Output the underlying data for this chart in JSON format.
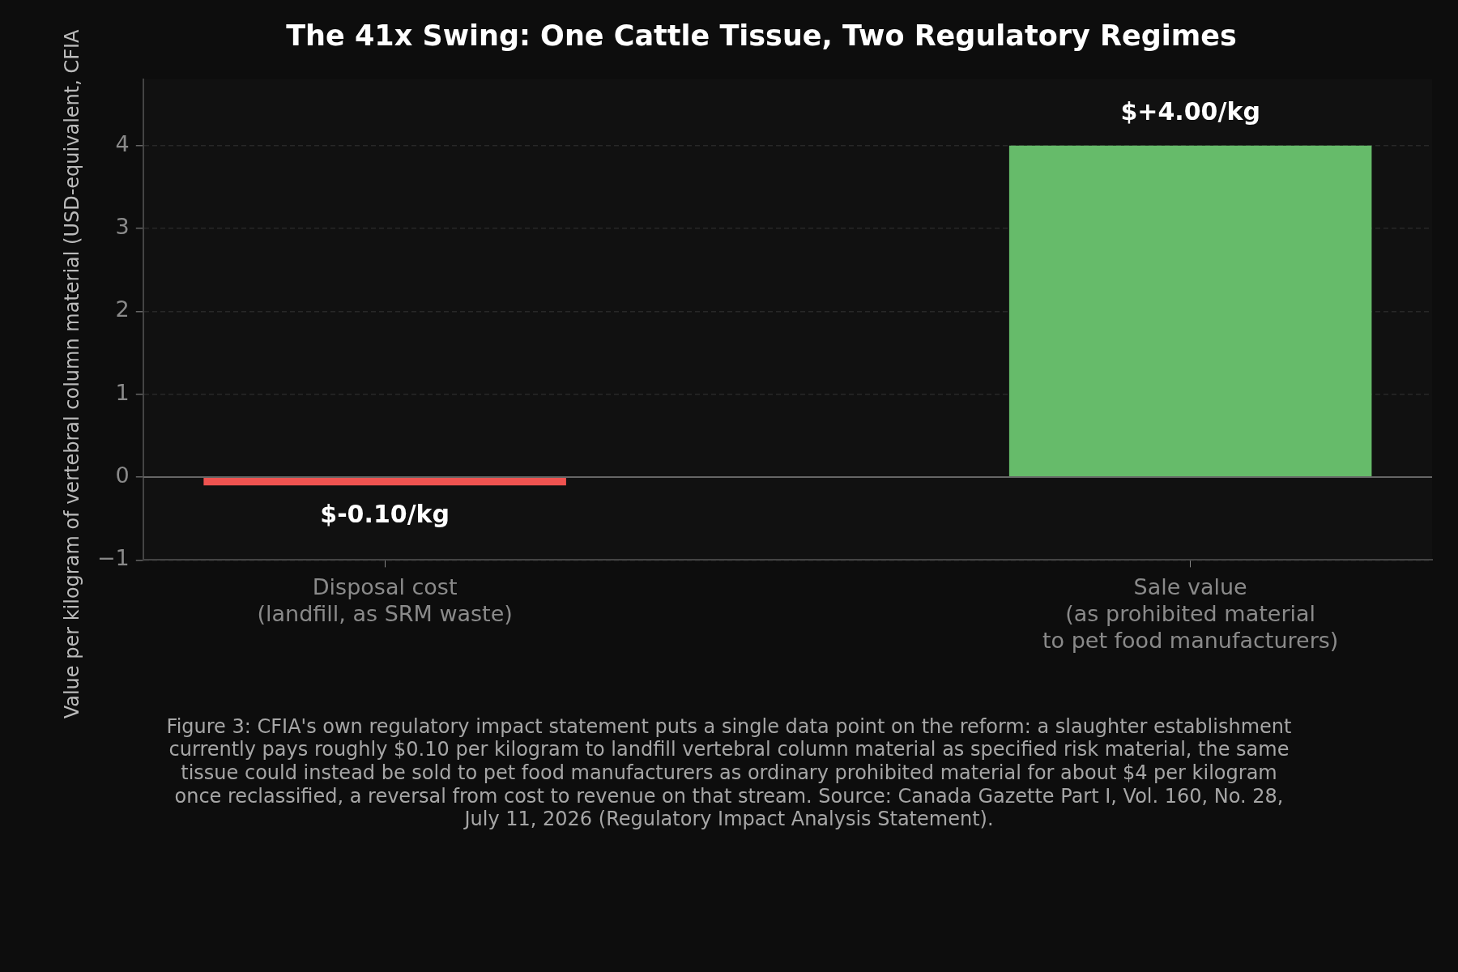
{
  "chart_data": {
    "type": "bar",
    "title": "The 41x Swing: One Cattle Tissue, Two Regulatory Regimes",
    "ylabel": "Value per kilogram of vertebral column material (USD-equivalent, CFIA",
    "categories": [
      "Disposal cost\n(landfill, as SRM waste)",
      "Sale value\n(as prohibited material\nto pet food manufacturers)"
    ],
    "values": [
      -0.1,
      4.0
    ],
    "colors": [
      "#ef5350",
      "#66bb6a"
    ],
    "value_labels": [
      "$-0.10/kg",
      "$+4.00/kg"
    ],
    "ylim": [
      -1,
      4.8
    ],
    "yticks": [
      {
        "value": -1,
        "label": "−1"
      },
      0,
      1,
      2,
      3,
      4
    ],
    "grid": "y",
    "ref_lines": [
      {
        "axis": "y",
        "value": 0,
        "color": "#666666"
      }
    ],
    "annotations": [
      "Figure 3: CFIA's own regulatory impact statement puts a single data point on the reform: a slaughter establishment currently pays roughly $0.10 per kilogram to landfill vertebral column material as specified risk material, the same tissue could instead be sold to pet food manufacturers as ordinary prohibited material for about $4 per kilogram once reclassified, a reversal from cost to revenue on that stream. Source: Canada Gazette Part I, Vol. 160, No. 28, July 11, 2026 (Regulatory Impact Analysis Statement)."
    ]
  }
}
